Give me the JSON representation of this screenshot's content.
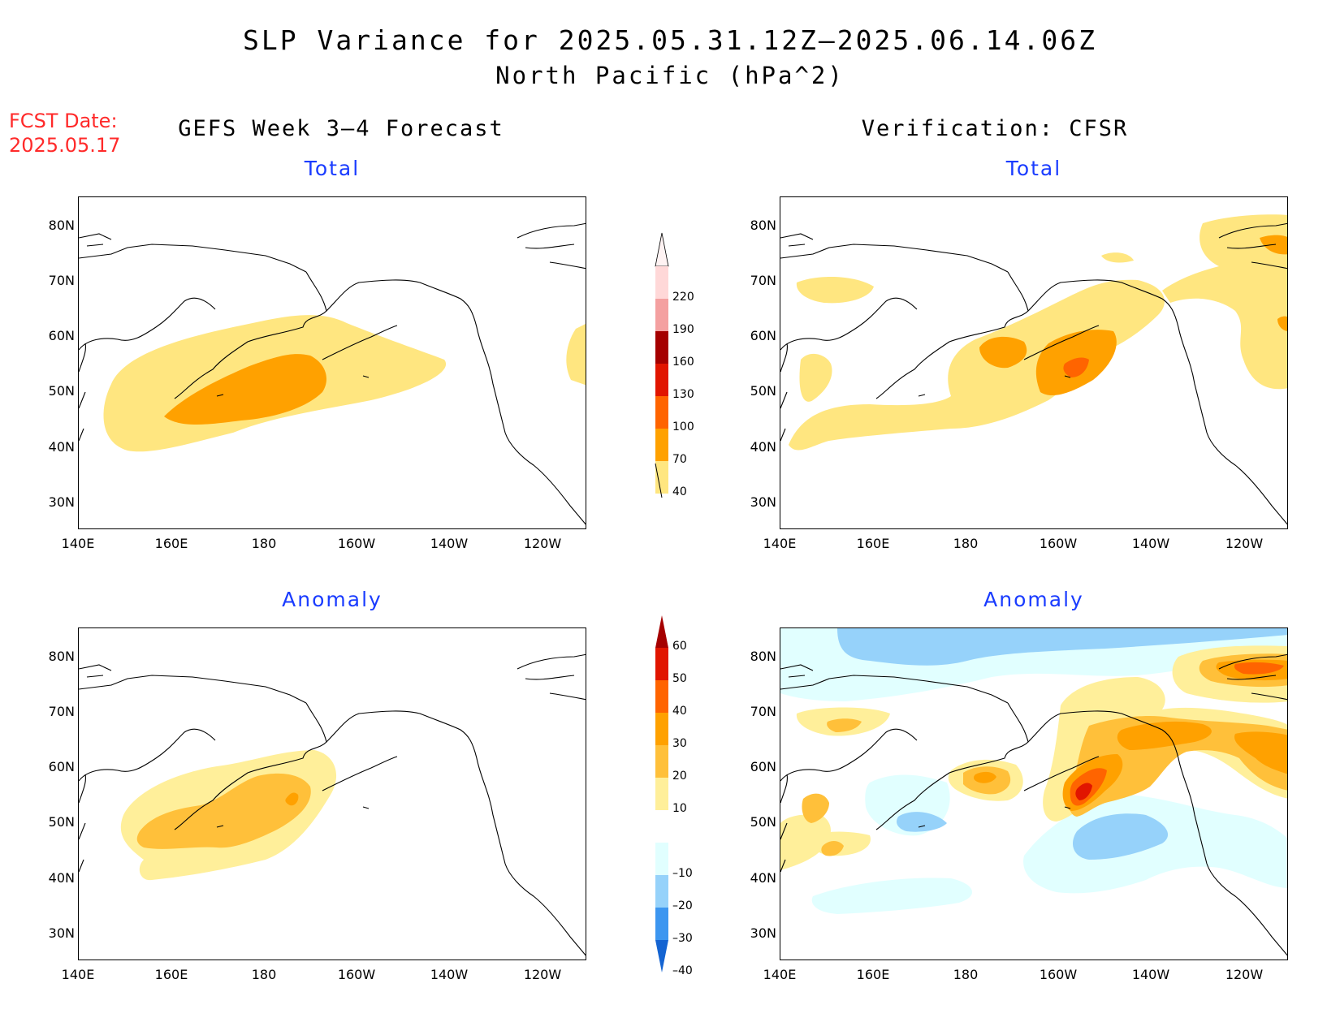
{
  "title": "SLP Variance for 2025.05.31.12Z–2025.06.14.06Z",
  "subtitle": "North Pacific (hPa^2)",
  "fcst_label": "FCST Date:",
  "fcst_date": "2025.05.17",
  "left_column_title": "GEFS Week 3–4 Forecast",
  "right_column_title": "Verification: CFSR",
  "panels": {
    "tl": "Total",
    "tr": "Total",
    "bl": "Anomaly",
    "br": "Anomaly"
  },
  "lat_labels": [
    "80N",
    "70N",
    "60N",
    "50N",
    "40N",
    "30N"
  ],
  "lon_labels": [
    "140E",
    "160E",
    "180",
    "160W",
    "140W",
    "120W"
  ],
  "total_colorbar": {
    "levels": [
      "40",
      "70",
      "100",
      "130",
      "160",
      "190",
      "220"
    ],
    "colors": [
      "#ffe680",
      "#ffa100",
      "#ff6400",
      "#e11500",
      "#a50000",
      "#f4a0a0",
      "#ffd8d8"
    ]
  },
  "anomaly_colorbar": {
    "levels": [
      "60",
      "50",
      "40",
      "30",
      "20",
      "10",
      "–10",
      "–20",
      "–30",
      "–40"
    ],
    "colors": {
      "10-20": "#ffef9a",
      "20-30": "#ffc03a",
      "30-40": "#ffa100",
      "40-50": "#ff6400",
      "50-60": "#e11500",
      "gt60": "#a50000",
      "neg10-20": "#e1ffff",
      "neg20-30": "#96d2fa",
      "neg30-40": "#3c96f0",
      "lt-40": "#1464d2"
    }
  }
}
